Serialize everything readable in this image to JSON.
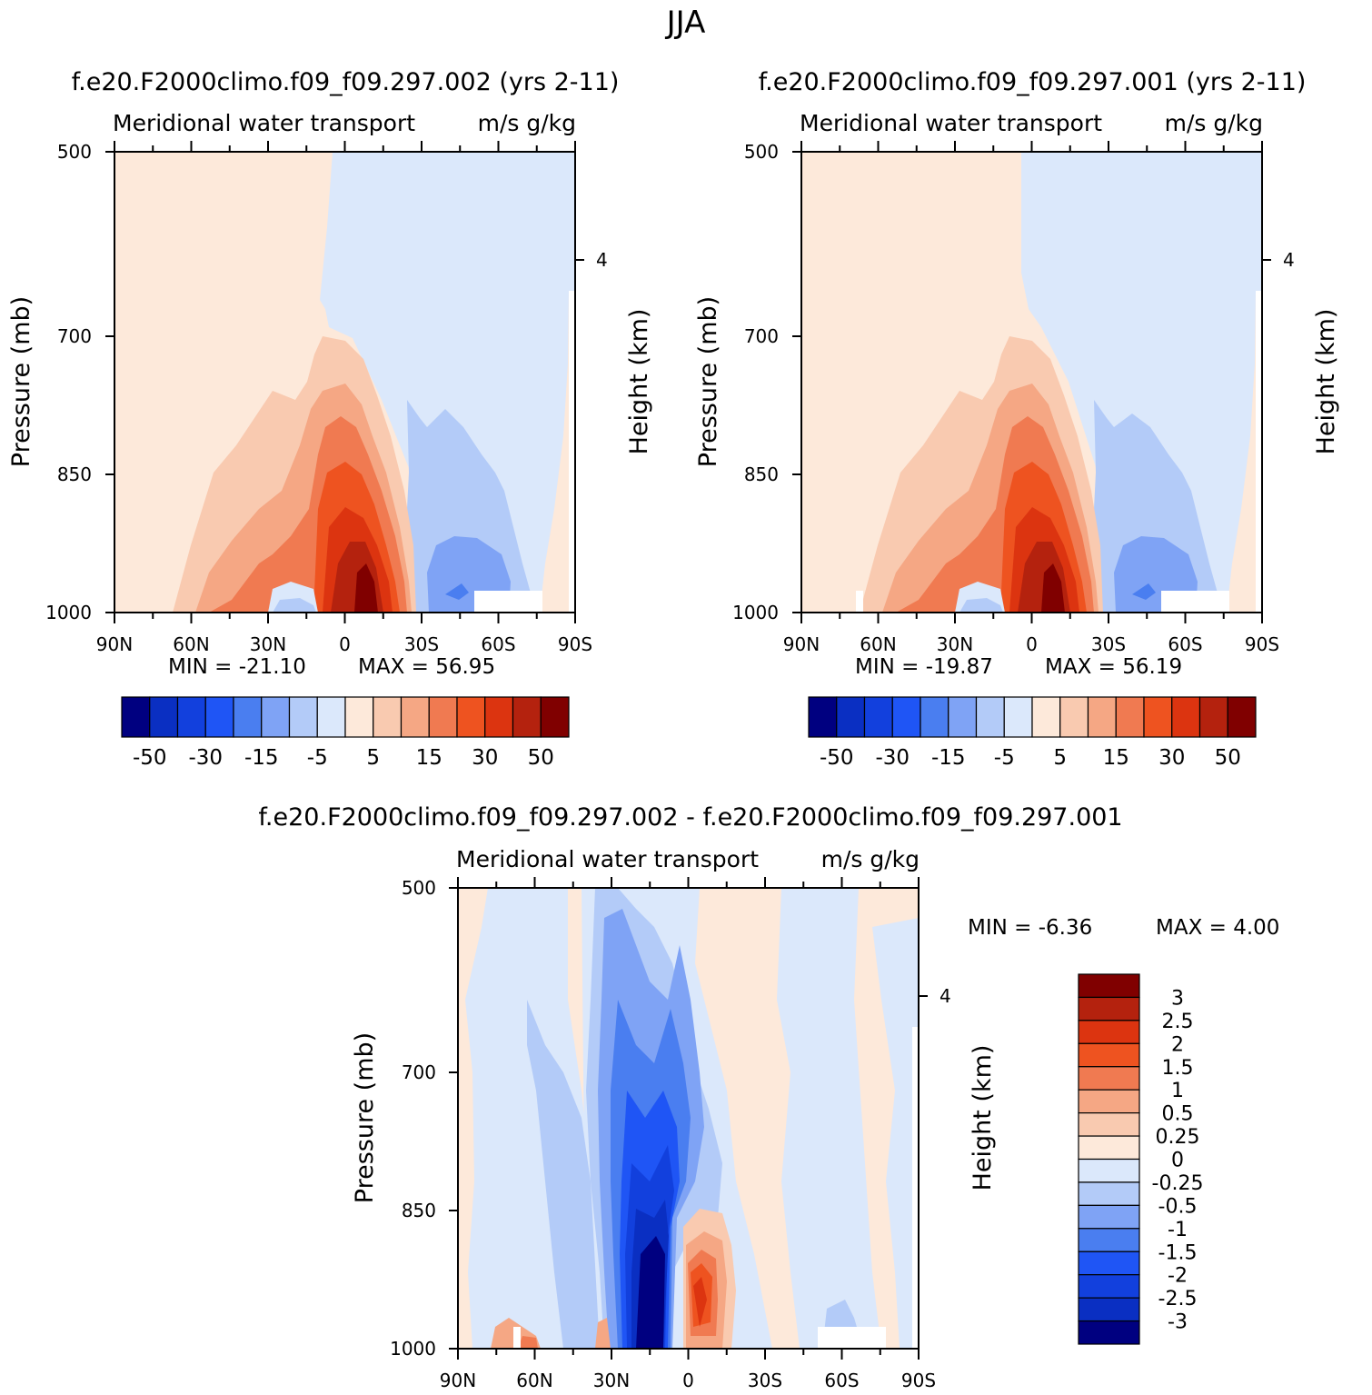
{
  "figure": {
    "season_title": "JJA"
  },
  "colors": {
    "main_scale": [
      "#000080",
      "#0a2fc2",
      "#1240dd",
      "#1f55f5",
      "#4a7ef0",
      "#7fa3f5",
      "#b3cbf8",
      "#dbe8fb",
      "#fde9da",
      "#f9cab0",
      "#f5a784",
      "#f07a51",
      "#ee5320",
      "#dc3410",
      "#b4220e",
      "#800000"
    ],
    "diff_scale": [
      "#800000",
      "#b4220e",
      "#dc3410",
      "#ee5320",
      "#f07a51",
      "#f5a784",
      "#f9cab0",
      "#fde9da",
      "#dbe8fb",
      "#b3cbf8",
      "#7fa3f5",
      "#4a7ef0",
      "#1f55f5",
      "#1240dd",
      "#0a2fc2",
      "#000080"
    ]
  },
  "chart_data": [
    {
      "type": "heatmap",
      "id": "case1",
      "title": "f.e20.F2000climo.f09_f09.297.002 (yrs 2-11)",
      "subtitle_left": "Meridional water transport",
      "subtitle_right": "m/s g/kg",
      "xlabel": "",
      "ylabel": "Pressure (mb)",
      "ylabel_right": "Height (km)",
      "x_ticks": [
        "90N",
        "60N",
        "30N",
        "0",
        "30S",
        "60S",
        "90S"
      ],
      "y_ticks": [
        "500",
        "700",
        "850",
        "1000"
      ],
      "y_right_ticks": [
        "4"
      ],
      "min_text": "MIN = -21.10",
      "max_text": "MAX = 56.95",
      "colorbar_labels": [
        "-50",
        "-30",
        "-15",
        "-5",
        "5",
        "15",
        "30",
        "50"
      ]
    },
    {
      "type": "heatmap",
      "id": "case2",
      "title": "f.e20.F2000climo.f09_f09.297.001 (yrs 2-11)",
      "subtitle_left": "Meridional water transport",
      "subtitle_right": "m/s g/kg",
      "xlabel": "",
      "ylabel": "Pressure (mb)",
      "ylabel_right": "Height (km)",
      "x_ticks": [
        "90N",
        "60N",
        "30N",
        "0",
        "30S",
        "60S",
        "90S"
      ],
      "y_ticks": [
        "500",
        "700",
        "850",
        "1000"
      ],
      "y_right_ticks": [
        "4"
      ],
      "min_text": "MIN = -19.87",
      "max_text": "MAX = 56.19",
      "colorbar_labels": [
        "-50",
        "-30",
        "-15",
        "-5",
        "5",
        "15",
        "30",
        "50"
      ]
    },
    {
      "type": "heatmap",
      "id": "diff",
      "title": "f.e20.F2000climo.f09_f09.297.002 - f.e20.F2000climo.f09_f09.297.001",
      "subtitle_left": "Meridional water transport",
      "subtitle_right": "m/s g/kg",
      "xlabel": "",
      "ylabel": "Pressure (mb)",
      "ylabel_right": "Height (km)",
      "x_ticks": [
        "90N",
        "60N",
        "30N",
        "0",
        "30S",
        "60S",
        "90S"
      ],
      "y_ticks": [
        "500",
        "700",
        "850",
        "1000"
      ],
      "y_right_ticks": [
        "4"
      ],
      "min_text": "MIN = -6.36",
      "max_text": "MAX = 4.00",
      "colorbar_labels": [
        "3",
        "2.5",
        "2",
        "1.5",
        "1",
        "0.5",
        "0.25",
        "0",
        "-0.25",
        "-0.5",
        "-1",
        "-1.5",
        "-2",
        "-2.5",
        "-3"
      ]
    }
  ]
}
